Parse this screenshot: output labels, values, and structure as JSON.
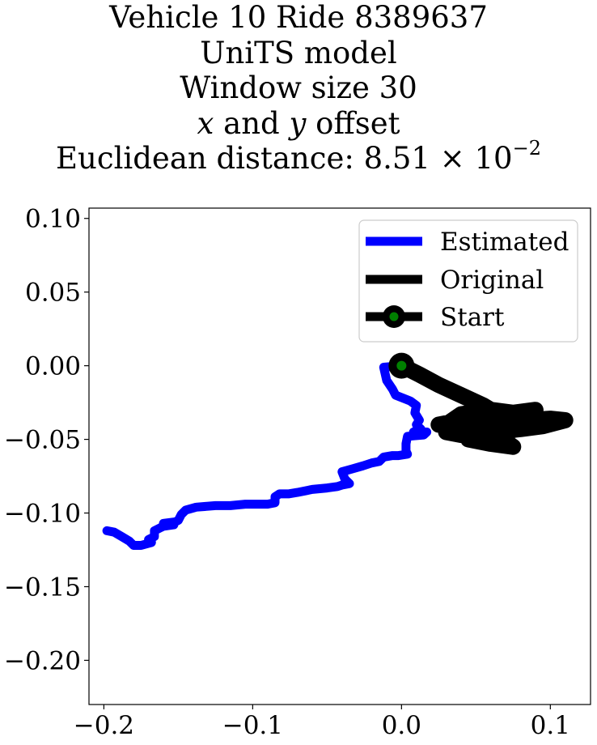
{
  "chart_data": {
    "type": "line",
    "title_lines": {
      "line1": "Vehicle 10 Ride 8389637",
      "line2": "UniTS model",
      "line3": "Window size 30",
      "line4": {
        "var_x": "x",
        "and": " and ",
        "var_y": "y",
        "rest": " offset"
      },
      "line5": {
        "prefix": "Euclidean distance: 8.51 × 10",
        "exponent": "−2"
      }
    },
    "xlim": [
      -0.21,
      0.127
    ],
    "ylim": [
      -0.23,
      0.107
    ],
    "x_ticks": [
      {
        "value": -0.2,
        "label": "−0.2"
      },
      {
        "value": -0.1,
        "label": "−0.1"
      },
      {
        "value": 0.0,
        "label": "0.0"
      },
      {
        "value": 0.1,
        "label": "0.1"
      }
    ],
    "y_ticks": [
      {
        "value": 0.1,
        "label": "0.10"
      },
      {
        "value": 0.05,
        "label": "0.05"
      },
      {
        "value": 0.0,
        "label": "0.00"
      },
      {
        "value": -0.05,
        "label": "−0.05"
      },
      {
        "value": -0.1,
        "label": "−0.10"
      },
      {
        "value": -0.15,
        "label": "−0.15"
      },
      {
        "value": -0.2,
        "label": "−0.20"
      }
    ],
    "legend_position": "top-right",
    "series": [
      {
        "name": "Estimated",
        "color": "#0000ff",
        "points": [
          [
            0.0,
            0.0
          ],
          [
            -0.012,
            -0.001
          ],
          [
            -0.01,
            -0.01
          ],
          [
            -0.006,
            -0.016
          ],
          [
            -0.004,
            -0.02
          ],
          [
            0.006,
            -0.024
          ],
          [
            0.01,
            -0.027
          ],
          [
            0.009,
            -0.032
          ],
          [
            0.012,
            -0.037
          ],
          [
            0.01,
            -0.04
          ],
          [
            0.013,
            -0.043
          ],
          [
            0.008,
            -0.045
          ],
          [
            0.017,
            -0.045
          ],
          [
            0.015,
            -0.047
          ],
          [
            0.004,
            -0.048
          ],
          [
            0.003,
            -0.053
          ],
          [
            0.003,
            -0.058
          ],
          [
            0.004,
            -0.06
          ],
          [
            -0.002,
            -0.061
          ],
          [
            -0.006,
            -0.061
          ],
          [
            -0.012,
            -0.062
          ],
          [
            -0.015,
            -0.065
          ],
          [
            -0.02,
            -0.066
          ],
          [
            -0.026,
            -0.068
          ],
          [
            -0.033,
            -0.07
          ],
          [
            -0.04,
            -0.072
          ],
          [
            -0.038,
            -0.077
          ],
          [
            -0.035,
            -0.08
          ],
          [
            -0.04,
            -0.081
          ],
          [
            -0.043,
            -0.082
          ],
          [
            -0.05,
            -0.083
          ],
          [
            -0.06,
            -0.084
          ],
          [
            -0.07,
            -0.086
          ],
          [
            -0.076,
            -0.087
          ],
          [
            -0.082,
            -0.087
          ],
          [
            -0.085,
            -0.089
          ],
          [
            -0.085,
            -0.093
          ],
          [
            -0.09,
            -0.094
          ],
          [
            -0.105,
            -0.094
          ],
          [
            -0.115,
            -0.095
          ],
          [
            -0.125,
            -0.095
          ],
          [
            -0.138,
            -0.096
          ],
          [
            -0.145,
            -0.098
          ],
          [
            -0.148,
            -0.101
          ],
          [
            -0.15,
            -0.105
          ],
          [
            -0.152,
            -0.106
          ],
          [
            -0.16,
            -0.107
          ],
          [
            -0.155,
            -0.107
          ],
          [
            -0.153,
            -0.108
          ],
          [
            -0.16,
            -0.109
          ],
          [
            -0.162,
            -0.11
          ],
          [
            -0.166,
            -0.112
          ],
          [
            -0.166,
            -0.116
          ],
          [
            -0.17,
            -0.118
          ],
          [
            -0.168,
            -0.12
          ],
          [
            -0.175,
            -0.122
          ],
          [
            -0.18,
            -0.122
          ],
          [
            -0.183,
            -0.119
          ],
          [
            -0.188,
            -0.116
          ],
          [
            -0.193,
            -0.113
          ],
          [
            -0.198,
            -0.112
          ]
        ]
      },
      {
        "name": "Original",
        "color": "#000000",
        "points": [
          [
            0.0,
            0.0
          ],
          [
            0.012,
            -0.006
          ],
          [
            0.025,
            -0.013
          ],
          [
            0.04,
            -0.02
          ],
          [
            0.055,
            -0.027
          ],
          [
            0.06,
            -0.03
          ],
          [
            0.052,
            -0.035
          ],
          [
            0.035,
            -0.038
          ],
          [
            0.025,
            -0.04
          ],
          [
            0.05,
            -0.04
          ],
          [
            0.07,
            -0.04
          ],
          [
            0.085,
            -0.037
          ],
          [
            0.1,
            -0.036
          ],
          [
            0.11,
            -0.037
          ],
          [
            0.095,
            -0.041
          ],
          [
            0.08,
            -0.043
          ],
          [
            0.06,
            -0.045
          ],
          [
            0.045,
            -0.05
          ],
          [
            0.06,
            -0.053
          ],
          [
            0.075,
            -0.055
          ],
          [
            0.065,
            -0.048
          ],
          [
            0.05,
            -0.043
          ],
          [
            0.03,
            -0.04
          ],
          [
            0.04,
            -0.033
          ],
          [
            0.06,
            -0.03
          ],
          [
            0.075,
            -0.032
          ],
          [
            0.09,
            -0.03
          ],
          [
            0.078,
            -0.038
          ],
          [
            0.06,
            -0.042
          ],
          [
            0.04,
            -0.047
          ],
          [
            0.03,
            -0.045
          ],
          [
            0.05,
            -0.043
          ],
          [
            0.07,
            -0.038
          ],
          [
            0.055,
            -0.035
          ],
          [
            0.04,
            -0.036
          ],
          [
            0.06,
            -0.04
          ],
          [
            0.08,
            -0.042
          ],
          [
            0.068,
            -0.046
          ]
        ]
      }
    ],
    "start": {
      "name": "Start",
      "x": 0.0,
      "y": 0.0,
      "outer_color": "#000000",
      "inner_color": "#008000"
    }
  }
}
